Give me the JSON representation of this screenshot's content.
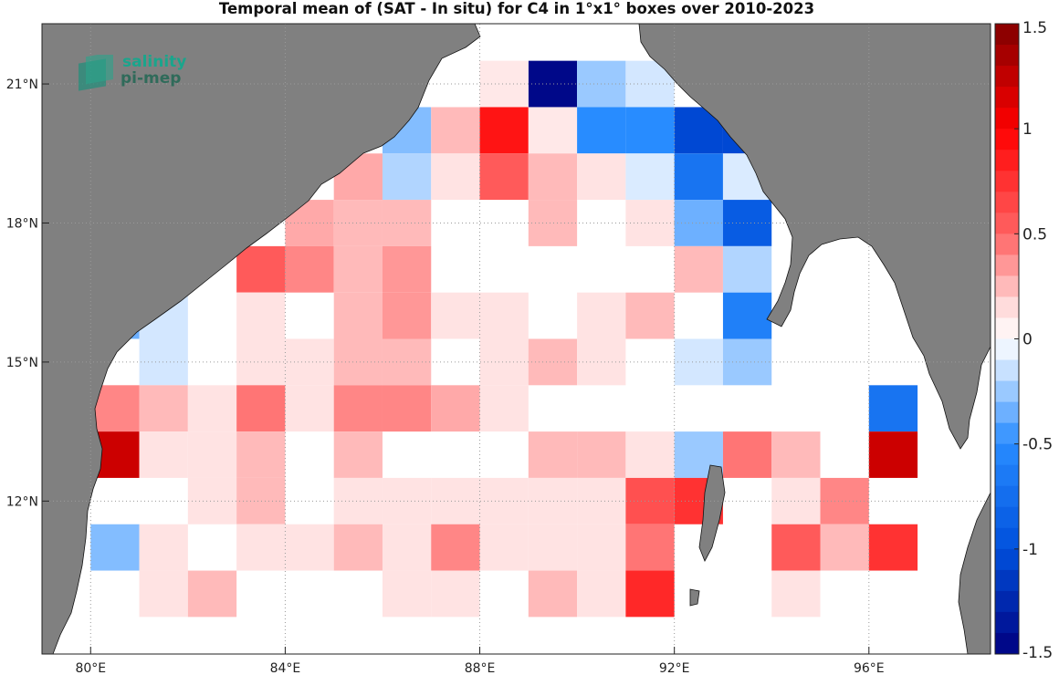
{
  "title": "Temporal mean of (SAT - In situ) for C4 in 1°x1° boxes over 2010-2023",
  "logo": {
    "line1": "salinity",
    "line2": "pi-mep"
  },
  "colors": {
    "land": "#808080",
    "grid": "#9a9a9a"
  },
  "chart_data": {
    "type": "heatmap",
    "title": "Temporal mean of (SAT - In situ) for C4 in 1°x1° boxes over 2010-2023",
    "x_range_deg_E": [
      79,
      98.5
    ],
    "y_range_deg_N": [
      8.7,
      22.3
    ],
    "xticks": [
      {
        "value": 80,
        "label": "80°E"
      },
      {
        "value": 84,
        "label": "84°E"
      },
      {
        "value": 88,
        "label": "88°E"
      },
      {
        "value": 92,
        "label": "92°E"
      },
      {
        "value": 96,
        "label": "96°E"
      }
    ],
    "yticks": [
      {
        "value": 12,
        "label": "12°N"
      },
      {
        "value": 15,
        "label": "15°N"
      },
      {
        "value": 18,
        "label": "18°N"
      },
      {
        "value": 21,
        "label": "21°N"
      }
    ],
    "colorbar": {
      "range": [
        -1.5,
        1.5
      ],
      "ticks": [
        {
          "value": 1.5,
          "label": "1.5"
        },
        {
          "value": 1,
          "label": "1"
        },
        {
          "value": 0.5,
          "label": "0.5"
        },
        {
          "value": 0,
          "label": "0"
        },
        {
          "value": -0.5,
          "label": "-0.5"
        },
        {
          "value": -1,
          "label": "-1"
        },
        {
          "value": -1.5,
          "label": "-1.5"
        }
      ]
    },
    "cells": [
      {
        "lon": 89.5,
        "lat": 21,
        "v": -1.45
      },
      {
        "lon": 90.5,
        "lat": 21,
        "v": -0.25
      },
      {
        "lon": 91.5,
        "lat": 21,
        "v": -0.12
      },
      {
        "lon": 88.5,
        "lat": 21,
        "v": 0.1
      },
      {
        "lon": 86.5,
        "lat": 20,
        "v": -0.3
      },
      {
        "lon": 87.5,
        "lat": 20,
        "v": 0.25
      },
      {
        "lon": 88.5,
        "lat": 20,
        "v": 0.9
      },
      {
        "lon": 89.5,
        "lat": 20,
        "v": 0.1
      },
      {
        "lon": 90.5,
        "lat": 20,
        "v": -0.5
      },
      {
        "lon": 91.5,
        "lat": 20,
        "v": -0.5
      },
      {
        "lon": 92.5,
        "lat": 20,
        "v": -1.05
      },
      {
        "lon": 93.5,
        "lat": 20,
        "v": -1.05
      },
      {
        "lon": 85.5,
        "lat": 19,
        "v": 0.3
      },
      {
        "lon": 86.5,
        "lat": 19,
        "v": -0.2
      },
      {
        "lon": 87.5,
        "lat": 19,
        "v": 0.12
      },
      {
        "lon": 88.5,
        "lat": 19,
        "v": 0.55
      },
      {
        "lon": 89.5,
        "lat": 19,
        "v": 0.25
      },
      {
        "lon": 90.5,
        "lat": 19,
        "v": 0.12
      },
      {
        "lon": 91.5,
        "lat": 19,
        "v": -0.1
      },
      {
        "lon": 92.5,
        "lat": 19,
        "v": -0.7
      },
      {
        "lon": 93.5,
        "lat": 19,
        "v": -0.1
      },
      {
        "lon": 84.5,
        "lat": 18,
        "v": 0.3
      },
      {
        "lon": 85.5,
        "lat": 18,
        "v": 0.25
      },
      {
        "lon": 86.5,
        "lat": 18,
        "v": 0.25
      },
      {
        "lon": 89.5,
        "lat": 18,
        "v": 0.25
      },
      {
        "lon": 91.5,
        "lat": 18,
        "v": 0.12
      },
      {
        "lon": 92.5,
        "lat": 18,
        "v": -0.35
      },
      {
        "lon": 93.5,
        "lat": 18,
        "v": -0.9
      },
      {
        "lon": 83.5,
        "lat": 17,
        "v": 0.55
      },
      {
        "lon": 84.5,
        "lat": 17,
        "v": 0.4
      },
      {
        "lon": 85.5,
        "lat": 17,
        "v": 0.25
      },
      {
        "lon": 86.5,
        "lat": 17,
        "v": 0.35
      },
      {
        "lon": 92.5,
        "lat": 17,
        "v": 0.25
      },
      {
        "lon": 93.5,
        "lat": 17,
        "v": -0.2
      },
      {
        "lon": 80.5,
        "lat": 16,
        "v": -0.35
      },
      {
        "lon": 81.5,
        "lat": 16,
        "v": -0.12
      },
      {
        "lon": 83.5,
        "lat": 16,
        "v": 0.12
      },
      {
        "lon": 85.5,
        "lat": 16,
        "v": 0.25
      },
      {
        "lon": 86.5,
        "lat": 16,
        "v": 0.35
      },
      {
        "lon": 87.5,
        "lat": 16,
        "v": 0.12
      },
      {
        "lon": 88.5,
        "lat": 16,
        "v": 0.12
      },
      {
        "lon": 90.5,
        "lat": 16,
        "v": 0.12
      },
      {
        "lon": 91.5,
        "lat": 16,
        "v": 0.25
      },
      {
        "lon": 93.5,
        "lat": 16,
        "v": -0.6
      },
      {
        "lon": 81.5,
        "lat": 15,
        "v": -0.12
      },
      {
        "lon": 83.5,
        "lat": 15,
        "v": 0.12
      },
      {
        "lon": 84.5,
        "lat": 15,
        "v": 0.12
      },
      {
        "lon": 85.5,
        "lat": 15,
        "v": 0.25
      },
      {
        "lon": 86.5,
        "lat": 15,
        "v": 0.25
      },
      {
        "lon": 88.5,
        "lat": 15,
        "v": 0.12
      },
      {
        "lon": 89.5,
        "lat": 15,
        "v": 0.25
      },
      {
        "lon": 90.5,
        "lat": 15,
        "v": 0.12
      },
      {
        "lon": 92.5,
        "lat": 15,
        "v": -0.12
      },
      {
        "lon": 93.5,
        "lat": 15,
        "v": -0.25
      },
      {
        "lon": 80.5,
        "lat": 14,
        "v": 0.4
      },
      {
        "lon": 81.5,
        "lat": 14,
        "v": 0.25
      },
      {
        "lon": 82.5,
        "lat": 14,
        "v": 0.12
      },
      {
        "lon": 83.5,
        "lat": 14,
        "v": 0.45
      },
      {
        "lon": 84.5,
        "lat": 14,
        "v": 0.12
      },
      {
        "lon": 85.5,
        "lat": 14,
        "v": 0.4
      },
      {
        "lon": 86.5,
        "lat": 14,
        "v": 0.4
      },
      {
        "lon": 87.5,
        "lat": 14,
        "v": 0.3
      },
      {
        "lon": 88.5,
        "lat": 14,
        "v": 0.12
      },
      {
        "lon": 96.5,
        "lat": 14,
        "v": -0.7
      },
      {
        "lon": 80.5,
        "lat": 13,
        "v": 1.2
      },
      {
        "lon": 81.5,
        "lat": 13,
        "v": 0.12
      },
      {
        "lon": 82.5,
        "lat": 13,
        "v": 0.12
      },
      {
        "lon": 83.5,
        "lat": 13,
        "v": 0.25
      },
      {
        "lon": 85.5,
        "lat": 13,
        "v": 0.25
      },
      {
        "lon": 89.5,
        "lat": 13,
        "v": 0.25
      },
      {
        "lon": 90.5,
        "lat": 13,
        "v": 0.25
      },
      {
        "lon": 91.5,
        "lat": 13,
        "v": 0.12
      },
      {
        "lon": 92.5,
        "lat": 13,
        "v": -0.25
      },
      {
        "lon": 93.5,
        "lat": 13,
        "v": 0.45
      },
      {
        "lon": 94.5,
        "lat": 13,
        "v": 0.25
      },
      {
        "lon": 96.5,
        "lat": 13,
        "v": 1.2
      },
      {
        "lon": 82.5,
        "lat": 12,
        "v": 0.12
      },
      {
        "lon": 83.5,
        "lat": 12,
        "v": 0.25
      },
      {
        "lon": 85.5,
        "lat": 12,
        "v": 0.12
      },
      {
        "lon": 86.5,
        "lat": 12,
        "v": 0.12
      },
      {
        "lon": 87.5,
        "lat": 12,
        "v": 0.12
      },
      {
        "lon": 88.5,
        "lat": 12,
        "v": 0.12
      },
      {
        "lon": 89.5,
        "lat": 12,
        "v": 0.12
      },
      {
        "lon": 90.5,
        "lat": 12,
        "v": 0.12
      },
      {
        "lon": 91.5,
        "lat": 12,
        "v": 0.6
      },
      {
        "lon": 92.5,
        "lat": 12,
        "v": 0.75
      },
      {
        "lon": 94.5,
        "lat": 12,
        "v": 0.12
      },
      {
        "lon": 95.5,
        "lat": 12,
        "v": 0.4
      },
      {
        "lon": 80.5,
        "lat": 11,
        "v": -0.3
      },
      {
        "lon": 81.5,
        "lat": 11,
        "v": 0.12
      },
      {
        "lon": 83.5,
        "lat": 11,
        "v": 0.12
      },
      {
        "lon": 84.5,
        "lat": 11,
        "v": 0.12
      },
      {
        "lon": 85.5,
        "lat": 11,
        "v": 0.25
      },
      {
        "lon": 86.5,
        "lat": 11,
        "v": 0.12
      },
      {
        "lon": 87.5,
        "lat": 11,
        "v": 0.4
      },
      {
        "lon": 88.5,
        "lat": 11,
        "v": 0.12
      },
      {
        "lon": 89.5,
        "lat": 11,
        "v": 0.12
      },
      {
        "lon": 90.5,
        "lat": 11,
        "v": 0.12
      },
      {
        "lon": 91.5,
        "lat": 11,
        "v": 0.45
      },
      {
        "lon": 94.5,
        "lat": 11,
        "v": 0.55
      },
      {
        "lon": 95.5,
        "lat": 11,
        "v": 0.25
      },
      {
        "lon": 96.5,
        "lat": 11,
        "v": 0.75
      },
      {
        "lon": 81.5,
        "lat": 10,
        "v": 0.12
      },
      {
        "lon": 82.5,
        "lat": 10,
        "v": 0.25
      },
      {
        "lon": 86.5,
        "lat": 10,
        "v": 0.12
      },
      {
        "lon": 87.5,
        "lat": 10,
        "v": 0.12
      },
      {
        "lon": 89.5,
        "lat": 10,
        "v": 0.25
      },
      {
        "lon": 90.5,
        "lat": 10,
        "v": 0.12
      },
      {
        "lon": 91.5,
        "lat": 10,
        "v": 0.8
      },
      {
        "lon": 94.5,
        "lat": 10,
        "v": 0.12
      }
    ]
  }
}
